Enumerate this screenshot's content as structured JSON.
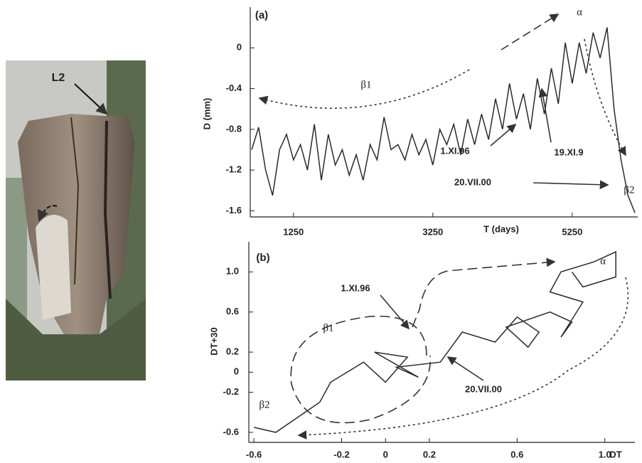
{
  "photo": {
    "label": "L2"
  },
  "chart_data": [
    {
      "type": "line",
      "panel": "(a)",
      "x_label": "T (days)",
      "y_label": "D (mm)",
      "x": [
        650,
        750,
        850,
        950,
        1050,
        1150,
        1250,
        1350,
        1450,
        1550,
        1650,
        1750,
        1850,
        1950,
        2050,
        2150,
        2250,
        2350,
        2450,
        2550,
        2650,
        2750,
        2850,
        2950,
        3050,
        3150,
        3250,
        3350,
        3450,
        3550,
        3650,
        3750,
        3850,
        3950,
        4050,
        4150,
        4250,
        4350,
        4450,
        4550,
        4650,
        4750,
        4850,
        4950,
        5050,
        5150,
        5250,
        5350,
        5450,
        5550,
        5650,
        5750,
        5850,
        5950,
        6050,
        6150
      ],
      "series": [
        {
          "color": "#2a2a2a",
          "values": [
            -1.0,
            -0.78,
            -1.2,
            -1.45,
            -1.0,
            -0.85,
            -1.1,
            -0.95,
            -1.2,
            -0.75,
            -1.3,
            -0.85,
            -1.15,
            -1.0,
            -1.25,
            -1.05,
            -1.3,
            -0.95,
            -1.1,
            -0.68,
            -1.0,
            -0.95,
            -1.1,
            -0.85,
            -1.05,
            -0.9,
            -1.15,
            -0.8,
            -0.95,
            -0.75,
            -1.05,
            -0.7,
            -0.95,
            -0.65,
            -0.9,
            -0.5,
            -0.8,
            -0.35,
            -0.7,
            -0.45,
            -0.8,
            -0.3,
            -0.65,
            -0.2,
            -0.55,
            0.05,
            -0.35,
            0.05,
            -0.25,
            0.15,
            -0.1,
            0.2,
            -0.6,
            -1.1,
            -1.45,
            -1.62
          ]
        }
      ],
      "xlim": [
        630,
        6190
      ],
      "xticks": [
        1250,
        3250,
        5250
      ],
      "ylim": [
        -1.66,
        0.4
      ],
      "yticks": [
        -1.6,
        -1.2,
        -0.8,
        -0.4,
        0
      ],
      "annotations": [
        "β1",
        "α",
        "β2",
        "1.XI.96",
        "19.XI.9",
        "20.VII.00"
      ]
    },
    {
      "type": "line",
      "panel": "(b)",
      "x_label": "DT",
      "y_label": "DT+30",
      "x": [
        -0.6,
        -0.5,
        -0.4,
        -0.3,
        -0.25,
        -0.1,
        0,
        0.1,
        -0.05,
        0.15,
        0.05,
        0.25,
        0.3,
        0.35,
        0.5,
        0.6,
        0.7,
        0.65,
        0.55,
        0.75,
        0.85,
        0.8,
        0.9,
        0.75,
        0.8,
        0.95,
        1.05,
        1.05,
        0.9,
        0.85
      ],
      "series": [
        {
          "color": "#2a2a2a",
          "values": [
            -0.55,
            -0.6,
            -0.45,
            -0.3,
            -0.1,
            0.1,
            -0.1,
            0.15,
            0.2,
            -0.05,
            0.05,
            0.1,
            0.25,
            0.4,
            0.3,
            0.55,
            0.4,
            0.25,
            0.45,
            0.6,
            0.5,
            0.35,
            0.7,
            0.8,
            1.0,
            1.1,
            1.2,
            0.95,
            0.85,
            1.0
          ]
        }
      ],
      "xlim": [
        -0.623,
        1.137
      ],
      "xticks": [
        -0.6,
        -0.2,
        0,
        0.2,
        0.6,
        {
          "value": 1,
          "label": "1.0"
        }
      ],
      "ylim": [
        -0.7,
        1.3
      ],
      "yticks": [
        -0.6,
        -0.2,
        0,
        0.2,
        0.6,
        {
          "value": 1,
          "label": "1.0"
        }
      ],
      "annotations": [
        "α",
        "β1",
        "β2",
        "1.XI.96",
        "20.VII.00"
      ]
    }
  ]
}
